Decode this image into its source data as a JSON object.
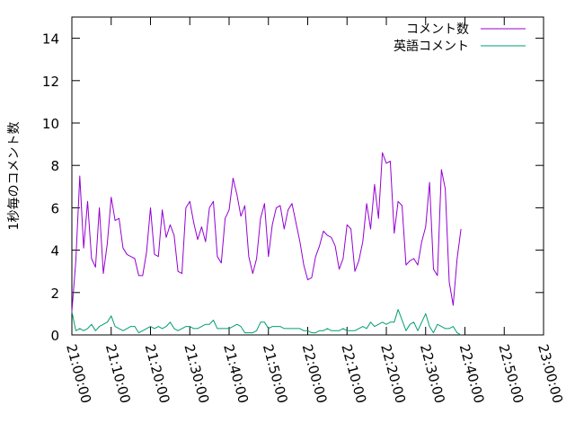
{
  "chart_data": {
    "type": "line",
    "title": "",
    "xlabel": "",
    "ylabel": "1秒毎のコメント数",
    "x_ticks": [
      "21:00:00",
      "21:10:00",
      "21:20:00",
      "21:30:00",
      "21:40:00",
      "21:50:00",
      "22:00:00",
      "22:10:00",
      "22:20:00",
      "22:30:00",
      "22:40:00",
      "22:50:00",
      "23:00:00"
    ],
    "x_range": [
      "21:00:00",
      "23:00:00"
    ],
    "y_ticks": [
      "0",
      "2",
      "4",
      "6",
      "8",
      "10",
      "12",
      "14"
    ],
    "ylim": [
      0,
      15
    ],
    "grid": false,
    "legend_position": "top-right",
    "series": [
      {
        "name": "コメント数",
        "color": "#9400d3",
        "points": [
          [
            "21:00:00",
            1.1
          ],
          [
            "21:01:00",
            3.5
          ],
          [
            "21:02:00",
            7.5
          ],
          [
            "21:03:00",
            4.1
          ],
          [
            "21:04:00",
            6.3
          ],
          [
            "21:05:00",
            3.6
          ],
          [
            "21:06:00",
            3.2
          ],
          [
            "21:07:00",
            6.0
          ],
          [
            "21:08:00",
            2.9
          ],
          [
            "21:09:00",
            4.3
          ],
          [
            "21:10:00",
            6.5
          ],
          [
            "21:11:00",
            5.4
          ],
          [
            "21:12:00",
            5.5
          ],
          [
            "21:13:00",
            4.1
          ],
          [
            "21:14:00",
            3.8
          ],
          [
            "21:15:00",
            3.7
          ],
          [
            "21:16:00",
            3.6
          ],
          [
            "21:17:00",
            2.8
          ],
          [
            "21:18:00",
            2.8
          ],
          [
            "21:19:00",
            3.9
          ],
          [
            "21:20:00",
            6.0
          ],
          [
            "21:21:00",
            3.8
          ],
          [
            "21:22:00",
            3.7
          ],
          [
            "21:23:00",
            5.9
          ],
          [
            "21:24:00",
            4.6
          ],
          [
            "21:25:00",
            5.2
          ],
          [
            "21:26:00",
            4.7
          ],
          [
            "21:27:00",
            3.0
          ],
          [
            "21:28:00",
            2.9
          ],
          [
            "21:29:00",
            6.0
          ],
          [
            "21:30:00",
            6.3
          ],
          [
            "21:31:00",
            5.3
          ],
          [
            "21:32:00",
            4.5
          ],
          [
            "21:33:00",
            5.1
          ],
          [
            "21:34:00",
            4.4
          ],
          [
            "21:35:00",
            6.0
          ],
          [
            "21:36:00",
            6.3
          ],
          [
            "21:37:00",
            3.7
          ],
          [
            "21:38:00",
            3.4
          ],
          [
            "21:39:00",
            5.5
          ],
          [
            "21:40:00",
            5.9
          ],
          [
            "21:41:00",
            7.4
          ],
          [
            "21:42:00",
            6.6
          ],
          [
            "21:43:00",
            5.6
          ],
          [
            "21:44:00",
            6.1
          ],
          [
            "21:45:00",
            3.7
          ],
          [
            "21:46:00",
            2.9
          ],
          [
            "21:47:00",
            3.6
          ],
          [
            "21:48:00",
            5.5
          ],
          [
            "21:49:00",
            6.2
          ],
          [
            "21:50:00",
            3.7
          ],
          [
            "21:51:00",
            5.2
          ],
          [
            "21:52:00",
            6.0
          ],
          [
            "21:53:00",
            6.1
          ],
          [
            "21:54:00",
            5.0
          ],
          [
            "21:55:00",
            5.9
          ],
          [
            "21:56:00",
            6.2
          ],
          [
            "21:57:00",
            5.3
          ],
          [
            "21:58:00",
            4.4
          ],
          [
            "21:59:00",
            3.3
          ],
          [
            "22:00:00",
            2.6
          ],
          [
            "22:01:00",
            2.7
          ],
          [
            "22:02:00",
            3.7
          ],
          [
            "22:03:00",
            4.2
          ],
          [
            "22:04:00",
            4.9
          ],
          [
            "22:05:00",
            4.7
          ],
          [
            "22:06:00",
            4.6
          ],
          [
            "22:07:00",
            4.2
          ],
          [
            "22:08:00",
            3.1
          ],
          [
            "22:09:00",
            3.6
          ],
          [
            "22:10:00",
            5.2
          ],
          [
            "22:11:00",
            5.0
          ],
          [
            "22:12:00",
            3.0
          ],
          [
            "22:13:00",
            3.5
          ],
          [
            "22:14:00",
            4.4
          ],
          [
            "22:15:00",
            6.2
          ],
          [
            "22:16:00",
            5.0
          ],
          [
            "22:17:00",
            7.1
          ],
          [
            "22:18:00",
            5.5
          ],
          [
            "22:19:00",
            8.6
          ],
          [
            "22:20:00",
            8.1
          ],
          [
            "22:21:00",
            8.2
          ],
          [
            "22:22:00",
            4.8
          ],
          [
            "22:23:00",
            6.3
          ],
          [
            "22:24:00",
            6.1
          ],
          [
            "22:25:00",
            3.3
          ],
          [
            "22:26:00",
            3.5
          ],
          [
            "22:27:00",
            3.6
          ],
          [
            "22:28:00",
            3.3
          ],
          [
            "22:29:00",
            4.4
          ],
          [
            "22:30:00",
            5.1
          ],
          [
            "22:31:00",
            7.2
          ],
          [
            "22:32:00",
            3.1
          ],
          [
            "22:33:00",
            2.8
          ],
          [
            "22:34:00",
            7.8
          ],
          [
            "22:35:00",
            6.9
          ],
          [
            "22:36:00",
            2.5
          ],
          [
            "22:37:00",
            1.4
          ],
          [
            "22:38:00",
            3.6
          ],
          [
            "22:39:00",
            5.0
          ]
        ]
      },
      {
        "name": "英語コメント",
        "color": "#009e73",
        "points": [
          [
            "21:00:00",
            1.1
          ],
          [
            "21:01:00",
            0.2
          ],
          [
            "21:02:00",
            0.3
          ],
          [
            "21:03:00",
            0.2
          ],
          [
            "21:04:00",
            0.3
          ],
          [
            "21:05:00",
            0.5
          ],
          [
            "21:06:00",
            0.2
          ],
          [
            "21:07:00",
            0.4
          ],
          [
            "21:08:00",
            0.5
          ],
          [
            "21:09:00",
            0.6
          ],
          [
            "21:10:00",
            0.9
          ],
          [
            "21:11:00",
            0.4
          ],
          [
            "21:12:00",
            0.3
          ],
          [
            "21:13:00",
            0.2
          ],
          [
            "21:14:00",
            0.3
          ],
          [
            "21:15:00",
            0.4
          ],
          [
            "21:16:00",
            0.4
          ],
          [
            "21:17:00",
            0.1
          ],
          [
            "21:18:00",
            0.2
          ],
          [
            "21:19:00",
            0.3
          ],
          [
            "21:20:00",
            0.4
          ],
          [
            "21:21:00",
            0.3
          ],
          [
            "21:22:00",
            0.4
          ],
          [
            "21:23:00",
            0.3
          ],
          [
            "21:24:00",
            0.4
          ],
          [
            "21:25:00",
            0.6
          ],
          [
            "21:26:00",
            0.3
          ],
          [
            "21:27:00",
            0.2
          ],
          [
            "21:28:00",
            0.3
          ],
          [
            "21:29:00",
            0.4
          ],
          [
            "21:30:00",
            0.4
          ],
          [
            "21:31:00",
            0.3
          ],
          [
            "21:32:00",
            0.3
          ],
          [
            "21:33:00",
            0.4
          ],
          [
            "21:34:00",
            0.5
          ],
          [
            "21:35:00",
            0.5
          ],
          [
            "21:36:00",
            0.7
          ],
          [
            "21:37:00",
            0.3
          ],
          [
            "21:38:00",
            0.3
          ],
          [
            "21:39:00",
            0.3
          ],
          [
            "21:40:00",
            0.3
          ],
          [
            "21:41:00",
            0.4
          ],
          [
            "21:42:00",
            0.5
          ],
          [
            "21:43:00",
            0.4
          ],
          [
            "21:44:00",
            0.1
          ],
          [
            "21:45:00",
            0.1
          ],
          [
            "21:46:00",
            0.1
          ],
          [
            "21:47:00",
            0.2
          ],
          [
            "21:48:00",
            0.6
          ],
          [
            "21:49:00",
            0.6
          ],
          [
            "21:50:00",
            0.3
          ],
          [
            "21:51:00",
            0.4
          ],
          [
            "21:52:00",
            0.4
          ],
          [
            "21:53:00",
            0.4
          ],
          [
            "21:54:00",
            0.3
          ],
          [
            "21:55:00",
            0.3
          ],
          [
            "21:56:00",
            0.3
          ],
          [
            "21:57:00",
            0.3
          ],
          [
            "21:58:00",
            0.3
          ],
          [
            "21:59:00",
            0.2
          ],
          [
            "22:00:00",
            0.2
          ],
          [
            "22:01:00",
            0.1
          ],
          [
            "22:02:00",
            0.1
          ],
          [
            "22:03:00",
            0.2
          ],
          [
            "22:04:00",
            0.2
          ],
          [
            "22:05:00",
            0.3
          ],
          [
            "22:06:00",
            0.2
          ],
          [
            "22:07:00",
            0.2
          ],
          [
            "22:08:00",
            0.2
          ],
          [
            "22:09:00",
            0.3
          ],
          [
            "22:10:00",
            0.2
          ],
          [
            "22:11:00",
            0.2
          ],
          [
            "22:12:00",
            0.2
          ],
          [
            "22:13:00",
            0.3
          ],
          [
            "22:14:00",
            0.4
          ],
          [
            "22:15:00",
            0.3
          ],
          [
            "22:16:00",
            0.6
          ],
          [
            "22:17:00",
            0.4
          ],
          [
            "22:18:00",
            0.5
          ],
          [
            "22:19:00",
            0.6
          ],
          [
            "22:20:00",
            0.5
          ],
          [
            "22:21:00",
            0.6
          ],
          [
            "22:22:00",
            0.6
          ],
          [
            "22:23:00",
            1.2
          ],
          [
            "22:24:00",
            0.7
          ],
          [
            "22:25:00",
            0.2
          ],
          [
            "22:26:00",
            0.5
          ],
          [
            "22:27:00",
            0.6
          ],
          [
            "22:28:00",
            0.2
          ],
          [
            "22:29:00",
            0.6
          ],
          [
            "22:30:00",
            1.0
          ],
          [
            "22:31:00",
            0.4
          ],
          [
            "22:32:00",
            0.1
          ],
          [
            "22:33:00",
            0.5
          ],
          [
            "22:34:00",
            0.4
          ],
          [
            "22:35:00",
            0.3
          ],
          [
            "22:36:00",
            0.3
          ],
          [
            "22:37:00",
            0.4
          ],
          [
            "22:38:00",
            0.1
          ],
          [
            "22:39:00",
            0.0
          ]
        ]
      }
    ]
  }
}
